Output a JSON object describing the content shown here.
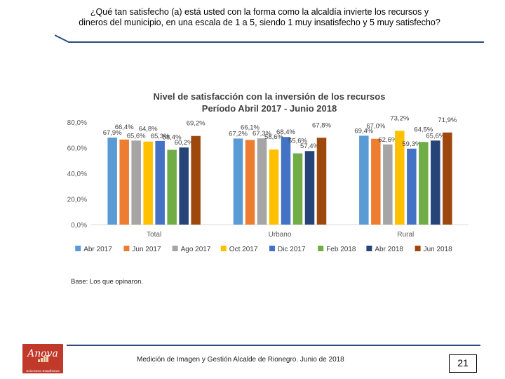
{
  "page": {
    "question": "¿Qué tan satisfecho (a) está usted con la forma como la alcaldía invierte los recursos y dineros del municipio, en una escala de 1 a 5, siendo 1 muy insatisfecho y 5 muy satisfecho?",
    "base_note": "Base: Los que opinaron.",
    "footer": "Medición de Imagen y Gestión Alcalde de Rionegro. Junio de 2018",
    "page_number": "21",
    "logo_name": "Anova",
    "logo_sub": "Soluciones Estadísticas",
    "accent_color": "#2e4a7d",
    "logo_color": "#c0392b"
  },
  "chart_data": {
    "type": "bar",
    "title": "Nivel de satisfacción con la inversión de los recursos",
    "subtitle": "Período Abril 2017 - Junio 2018",
    "categories": [
      "Total",
      "Urbano",
      "Rural"
    ],
    "series": [
      {
        "name": "Abr 2017",
        "color": "#5b9bd5",
        "values": [
          67.9,
          67.2,
          69.4
        ]
      },
      {
        "name": "Jun 2017",
        "color": "#ed7d31",
        "values": [
          66.4,
          66.1,
          67.0
        ]
      },
      {
        "name": "Ago 2017",
        "color": "#a5a5a5",
        "values": [
          65.6,
          67.3,
          62.6
        ]
      },
      {
        "name": "Oct 2017",
        "color": "#ffc000",
        "values": [
          64.8,
          58.6,
          73.2
        ]
      },
      {
        "name": "Dic 2017",
        "color": "#4472c4",
        "values": [
          65.3,
          68.4,
          59.3
        ]
      },
      {
        "name": "Feb 2018",
        "color": "#70ad47",
        "values": [
          58.4,
          55.6,
          64.5
        ]
      },
      {
        "name": "Abr 2018",
        "color": "#264478",
        "values": [
          60.2,
          57.4,
          65.6
        ]
      },
      {
        "name": "Jun 2018",
        "color": "#9e480e",
        "values": [
          69.2,
          67.8,
          71.9
        ]
      }
    ],
    "value_suffix": "%",
    "ylim": [
      0,
      80
    ],
    "yticks": [
      "0,0%",
      "20,0%",
      "40,0%",
      "60,0%",
      "80,0%"
    ],
    "grid": false,
    "legend": "bottom"
  }
}
